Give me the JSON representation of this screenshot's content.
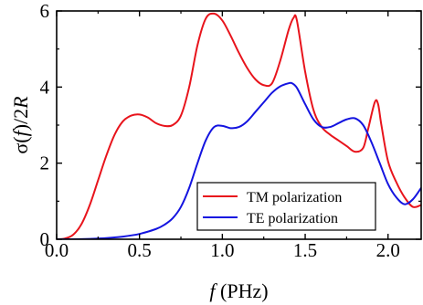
{
  "chart_data": {
    "type": "line",
    "xlabel": {
      "italic": "f",
      "rest": " (PHz)"
    },
    "ylabel": {
      "pre": "σ(",
      "italic1": "f",
      "mid": ")/2",
      "italic2": "R"
    },
    "xlim": [
      0.0,
      2.2
    ],
    "ylim": [
      0,
      6
    ],
    "x_ticks": [
      0.0,
      0.5,
      1.0,
      1.5,
      2.0
    ],
    "x_tick_labels": [
      "0.0",
      "0.5",
      "1.0",
      "1.5",
      "2.0"
    ],
    "y_ticks": [
      0,
      2,
      4,
      6
    ],
    "y_tick_labels": [
      "0",
      "2",
      "4",
      "6"
    ],
    "grid": false,
    "legend_position": "bottom-right",
    "series": [
      {
        "name": "TM polarization",
        "color": "#e8141c",
        "x": [
          0.0,
          0.05,
          0.1,
          0.15,
          0.2,
          0.25,
          0.3,
          0.35,
          0.4,
          0.45,
          0.5,
          0.55,
          0.6,
          0.65,
          0.7,
          0.75,
          0.8,
          0.85,
          0.9,
          0.95,
          1.0,
          1.05,
          1.1,
          1.15,
          1.2,
          1.25,
          1.3,
          1.35,
          1.4,
          1.43,
          1.45,
          1.5,
          1.55,
          1.6,
          1.65,
          1.7,
          1.75,
          1.8,
          1.85,
          1.88,
          1.92,
          1.94,
          1.96,
          2.0,
          2.05,
          2.1,
          2.15,
          2.2
        ],
        "y": [
          0.0,
          0.02,
          0.12,
          0.4,
          0.9,
          1.55,
          2.2,
          2.75,
          3.1,
          3.25,
          3.28,
          3.2,
          3.05,
          2.98,
          3.0,
          3.25,
          4.0,
          5.1,
          5.8,
          5.93,
          5.75,
          5.35,
          4.9,
          4.5,
          4.2,
          4.05,
          4.1,
          4.7,
          5.5,
          5.82,
          5.75,
          4.4,
          3.4,
          2.95,
          2.75,
          2.6,
          2.45,
          2.3,
          2.4,
          2.9,
          3.6,
          3.55,
          3.0,
          2.05,
          1.5,
          1.1,
          0.85,
          0.9
        ]
      },
      {
        "name": "TE polarization",
        "color": "#1414e0",
        "x": [
          0.0,
          0.1,
          0.2,
          0.3,
          0.4,
          0.5,
          0.6,
          0.65,
          0.7,
          0.75,
          0.8,
          0.85,
          0.9,
          0.95,
          1.0,
          1.05,
          1.1,
          1.15,
          1.2,
          1.25,
          1.3,
          1.35,
          1.4,
          1.42,
          1.45,
          1.5,
          1.55,
          1.6,
          1.65,
          1.7,
          1.75,
          1.8,
          1.85,
          1.9,
          1.95,
          2.0,
          2.05,
          2.1,
          2.15,
          2.2
        ],
        "y": [
          0.0,
          0.0,
          0.01,
          0.03,
          0.07,
          0.14,
          0.27,
          0.38,
          0.55,
          0.85,
          1.35,
          2.0,
          2.6,
          2.95,
          2.98,
          2.92,
          2.95,
          3.1,
          3.35,
          3.6,
          3.85,
          4.02,
          4.1,
          4.1,
          3.98,
          3.55,
          3.15,
          2.95,
          2.95,
          3.05,
          3.15,
          3.18,
          3.0,
          2.55,
          2.0,
          1.45,
          1.1,
          0.92,
          1.05,
          1.35
        ]
      }
    ]
  }
}
